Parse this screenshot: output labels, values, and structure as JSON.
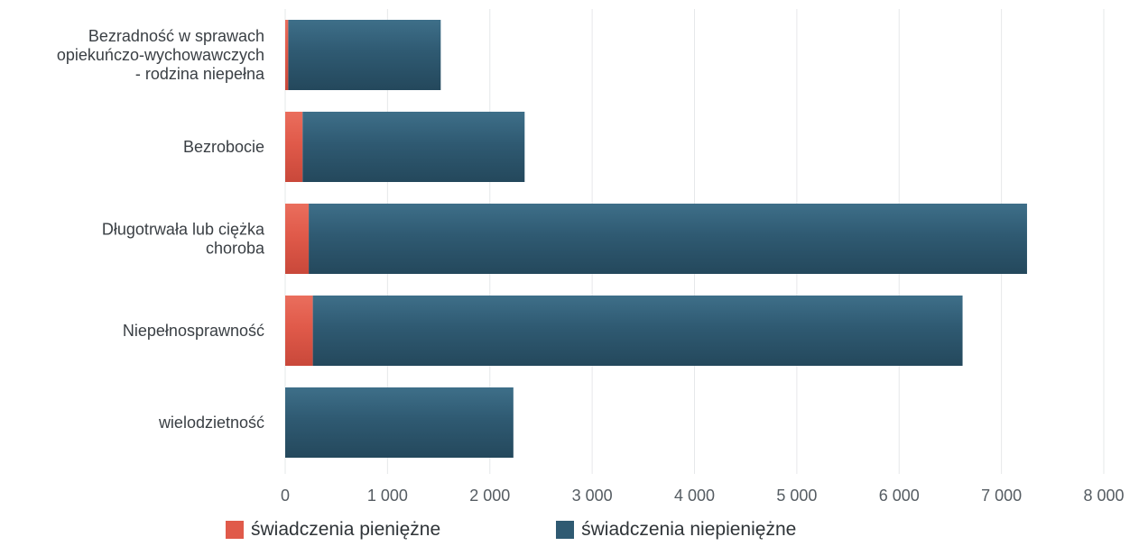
{
  "chart_data": {
    "type": "bar",
    "orientation": "horizontal",
    "stacked": true,
    "categories": [
      "Bezradność w sprawach opiekuńczo-wychowawczych - rodzina niepełna",
      "Bezrobocie",
      "Długotrwała lub ciężka choroba",
      "Niepełnosprawność",
      "wielodzietność"
    ],
    "category_lines": [
      [
        "Bezradność w sprawach",
        "opiekuńczo-wychowawczych",
        "- rodzina niepełna"
      ],
      [
        "Bezrobocie"
      ],
      [
        "Długotrwała lub ciężka",
        "choroba"
      ],
      [
        "Niepełnosprawność"
      ],
      [
        "wielodzietność"
      ]
    ],
    "series": [
      {
        "name": "świadczenia pieniężne",
        "color": "#e05a4a",
        "values": [
          30,
          170,
          230,
          270,
          0
        ]
      },
      {
        "name": "świadczenia niepieniężne",
        "color": "#2f5a72",
        "values": [
          1490,
          2170,
          7020,
          6350,
          2230
        ]
      }
    ],
    "xlim": [
      0,
      8000
    ],
    "xticks": [
      0,
      1000,
      2000,
      3000,
      4000,
      5000,
      6000,
      7000,
      8000
    ],
    "xtick_labels": [
      "0",
      "1 000",
      "2 000",
      "3 000",
      "4 000",
      "5 000",
      "6 000",
      "7 000",
      "8 000"
    ],
    "title": "",
    "xlabel": "",
    "ylabel": "",
    "grid": true,
    "legend_position": "bottom-left"
  }
}
